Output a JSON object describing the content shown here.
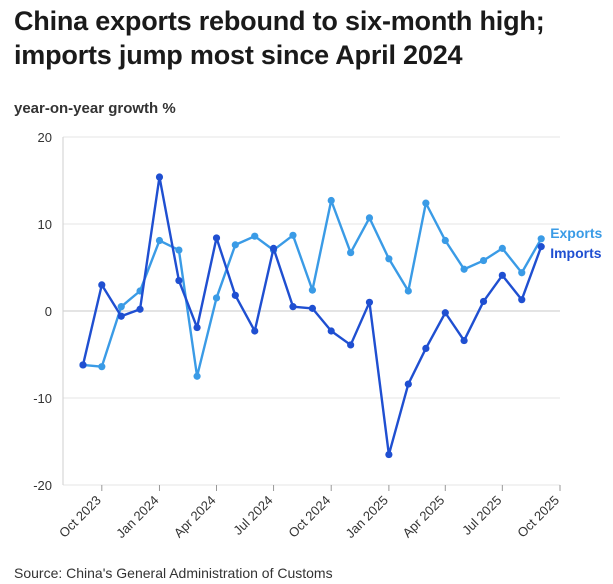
{
  "title": "China exports rebound to six-month high; imports jump most since April 2024",
  "source": "Source: China's General Administration of Customs",
  "chart_data": {
    "type": "line",
    "ylabel": "year-on-year growth %",
    "xlabel": "",
    "ylim": [
      -20,
      20
    ],
    "yticks": [
      -20,
      -10,
      0,
      10,
      20
    ],
    "ytick_labels": [
      "-20",
      "-10",
      "0",
      "10",
      "20"
    ],
    "grid": "y",
    "legend": "right",
    "x": [
      "2023-09",
      "2023-10",
      "2023-11",
      "2023-12",
      "2024-01",
      "2024-02",
      "2024-03",
      "2024-04",
      "2024-05",
      "2024-06",
      "2024-07",
      "2024-08",
      "2024-09",
      "2024-10",
      "2024-11",
      "2024-12",
      "2025-01",
      "2025-02",
      "2025-03",
      "2025-04",
      "2025-05",
      "2025-06",
      "2025-07",
      "2025-08",
      "2025-09"
    ],
    "xticks": [
      "Oct 2023",
      "Jan 2024",
      "Apr 2024",
      "Jul 2024",
      "Oct 2024",
      "Jan 2025",
      "Apr 2025",
      "Jul 2025",
      "Oct 2025"
    ],
    "series": [
      {
        "name": "Exports",
        "color": "#3a9be6",
        "values": [
          -6.2,
          -6.4,
          0.5,
          2.3,
          8.1,
          7.0,
          -7.5,
          1.5,
          7.6,
          8.6,
          7.0,
          8.7,
          2.4,
          12.7,
          6.7,
          10.7,
          6.0,
          2.3,
          12.4,
          8.1,
          4.8,
          5.8,
          7.2,
          4.4,
          8.3
        ]
      },
      {
        "name": "Imports",
        "color": "#1f4fd1",
        "values": [
          -6.2,
          3.0,
          -0.6,
          0.2,
          15.4,
          3.5,
          -1.9,
          8.4,
          1.8,
          -2.3,
          7.2,
          0.5,
          0.3,
          -2.3,
          -3.9,
          1.0,
          -16.5,
          -8.4,
          -4.3,
          -0.2,
          -3.4,
          1.1,
          4.1,
          1.3,
          7.4
        ]
      }
    ]
  }
}
